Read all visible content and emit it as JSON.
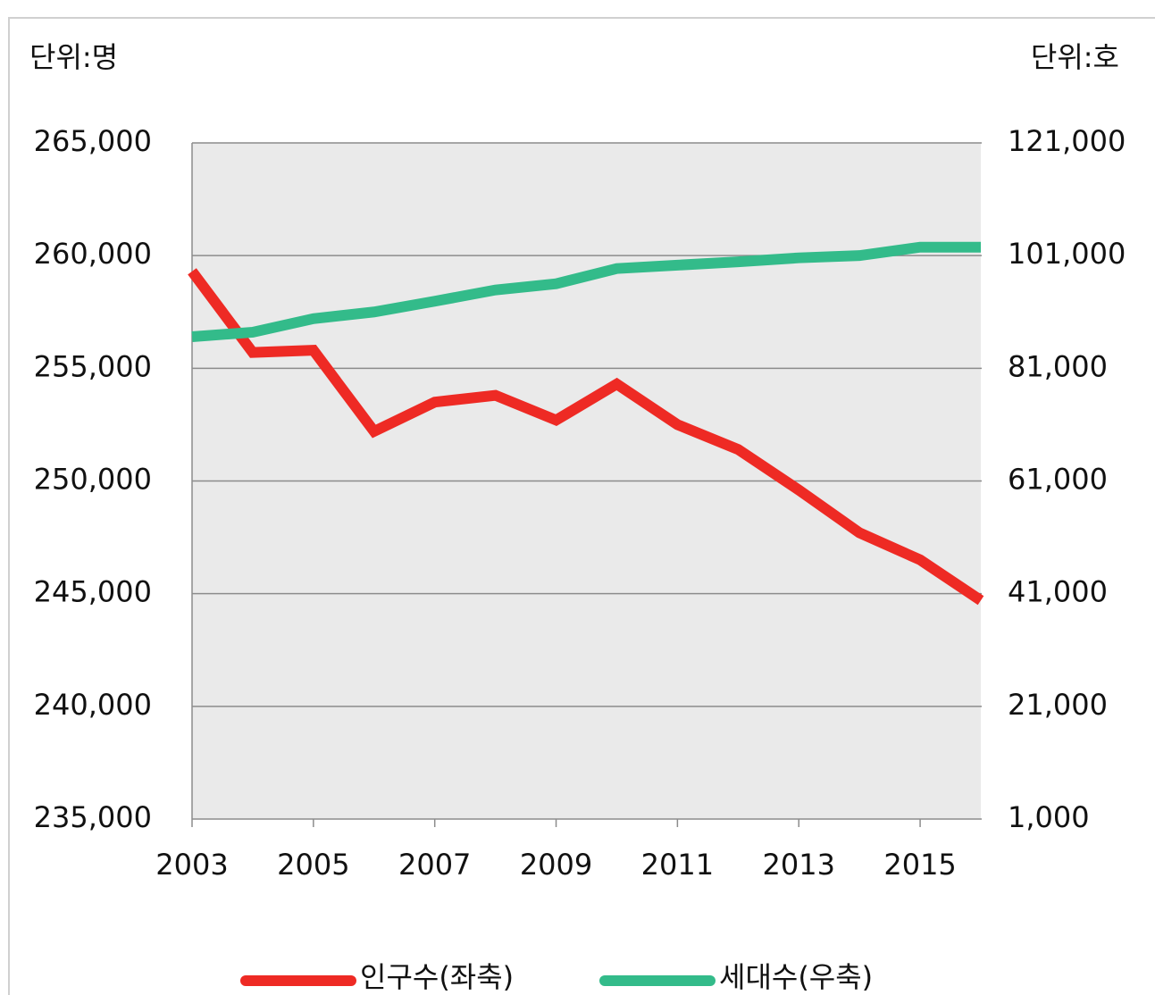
{
  "chart_data": {
    "type": "line",
    "left_unit": "단위:명",
    "right_unit": "단위:호",
    "x": [
      2003,
      2004,
      2005,
      2006,
      2007,
      2008,
      2009,
      2010,
      2011,
      2012,
      2013,
      2014,
      2015,
      2016
    ],
    "xlim": [
      2003,
      2016
    ],
    "xticks": [
      2003,
      2005,
      2007,
      2009,
      2011,
      2013,
      2015
    ],
    "ylim": [
      235000,
      265000
    ],
    "yticks": [
      {
        "value": 235000,
        "label": "235,000"
      },
      {
        "value": 240000,
        "label": "240,000"
      },
      {
        "value": 245000,
        "label": "245,000"
      },
      {
        "value": 250000,
        "label": "250,000"
      },
      {
        "value": 255000,
        "label": "255,000"
      },
      {
        "value": 260000,
        "label": "260,000"
      },
      {
        "value": 265000,
        "label": "265,000"
      }
    ],
    "y2lim": [
      1000,
      121000
    ],
    "y2ticks": [
      {
        "value": 1000,
        "label": "1,000"
      },
      {
        "value": 21000,
        "label": "21,000"
      },
      {
        "value": 41000,
        "label": "41,000"
      },
      {
        "value": 61000,
        "label": "61,000"
      },
      {
        "value": 81000,
        "label": "81,000"
      },
      {
        "value": 101000,
        "label": "101,000"
      },
      {
        "value": 121000,
        "label": "121,000"
      }
    ],
    "grid": true,
    "legend": "bottom",
    "series": [
      {
        "name": "인구수(좌축)",
        "color": "#ee2a24",
        "values": [
          259300,
          255700,
          255800,
          252200,
          253500,
          253800,
          252700,
          254300,
          252500,
          251400,
          249600,
          247700,
          246500,
          244700
        ]
      },
      {
        "name": "세대수(우축)",
        "color": "#33bb8a",
        "axis": "y2",
        "values": [
          86600,
          87400,
          89800,
          91000,
          92900,
          94900,
          96000,
          98700,
          99300,
          99900,
          100600,
          101000,
          102500,
          102500
        ]
      }
    ]
  }
}
